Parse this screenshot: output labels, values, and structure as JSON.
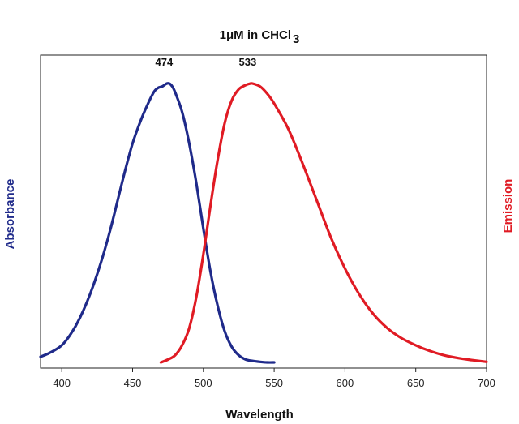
{
  "chart_data": {
    "type": "line",
    "title": "1μM in CHCl",
    "title_subscript": "3",
    "xlabel": "Wavelength",
    "ylabel_left": "Absorbance",
    "ylabel_right": "Emission",
    "xlim": [
      385,
      700
    ],
    "ylim": [
      0,
      1.1
    ],
    "xticks": [
      400,
      450,
      500,
      550,
      600,
      650,
      700
    ],
    "xtick_labels": [
      "400",
      "450",
      "500",
      "550",
      "600",
      "650",
      "700"
    ],
    "grid": false,
    "legend": "none",
    "colors": {
      "absorbance": "#1f2a8a",
      "emission": "#e01b24",
      "axis": "#222222"
    },
    "series": [
      {
        "name": "Absorbance",
        "color": "#1f2a8a",
        "peak_label": "474",
        "x": [
          385,
          390,
          395,
          400,
          405,
          410,
          415,
          420,
          425,
          430,
          435,
          440,
          445,
          450,
          455,
          460,
          465,
          468,
          471,
          474,
          476,
          478,
          480,
          485,
          490,
          495,
          500,
          505,
          510,
          515,
          520,
          525,
          530,
          535,
          540,
          545,
          550
        ],
        "values": [
          0.04,
          0.05,
          0.063,
          0.08,
          0.11,
          0.15,
          0.2,
          0.26,
          0.33,
          0.41,
          0.5,
          0.6,
          0.7,
          0.79,
          0.86,
          0.92,
          0.97,
          0.985,
          0.99,
          1.0,
          1.0,
          0.99,
          0.97,
          0.9,
          0.79,
          0.65,
          0.49,
          0.34,
          0.22,
          0.13,
          0.075,
          0.045,
          0.03,
          0.025,
          0.022,
          0.02,
          0.02
        ]
      },
      {
        "name": "Emission",
        "color": "#e01b24",
        "peak_label": "533",
        "x": [
          470,
          475,
          480,
          485,
          490,
          495,
          500,
          505,
          510,
          515,
          520,
          525,
          530,
          533,
          535,
          540,
          545,
          550,
          560,
          570,
          580,
          590,
          600,
          610,
          620,
          630,
          640,
          650,
          660,
          670,
          680,
          690,
          700
        ],
        "values": [
          0.02,
          0.03,
          0.045,
          0.08,
          0.14,
          0.25,
          0.4,
          0.57,
          0.73,
          0.86,
          0.94,
          0.98,
          0.995,
          1.0,
          1.0,
          0.99,
          0.965,
          0.93,
          0.84,
          0.72,
          0.59,
          0.46,
          0.35,
          0.26,
          0.19,
          0.14,
          0.105,
          0.08,
          0.06,
          0.045,
          0.035,
          0.028,
          0.022
        ]
      }
    ]
  }
}
